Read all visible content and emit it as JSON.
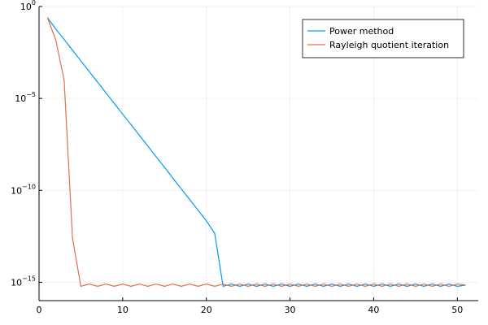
{
  "chart_data": {
    "type": "line",
    "title": "",
    "xlabel": "",
    "ylabel": "",
    "xlim": [
      0,
      52.5
    ],
    "yscale": "log",
    "ylim": [
      1e-16,
      1
    ],
    "grid": true,
    "legend_position": "top-right",
    "x_ticks": [
      0,
      10,
      20,
      30,
      40,
      50
    ],
    "x_tick_labels": [
      "0",
      "10",
      "20",
      "30",
      "40",
      "50"
    ],
    "y_ticks": [
      {
        "value": 1,
        "base": "10",
        "exponent": "0"
      },
      {
        "value": 1e-05,
        "base": "10",
        "exponent": "−5"
      },
      {
        "value": 1e-10,
        "base": "10",
        "exponent": "−10"
      },
      {
        "value": 1e-15,
        "base": "10",
        "exponent": "−15"
      }
    ],
    "series": [
      {
        "name": "Power method",
        "color": "#009af9",
        "x": [
          1,
          2,
          3,
          4,
          5,
          6,
          7,
          8,
          9,
          10,
          11,
          12,
          13,
          14,
          15,
          16,
          17,
          18,
          19,
          20,
          21,
          22,
          23,
          24,
          25,
          26,
          27,
          28,
          29,
          30,
          31,
          32,
          33,
          34,
          35,
          36,
          37,
          38,
          39,
          40,
          41,
          42,
          43,
          44,
          45,
          46,
          47,
          48,
          49,
          50,
          51
        ],
        "y": [
          0.25,
          0.06,
          0.016,
          0.0042,
          0.0011,
          0.00029,
          7.6e-05,
          2e-05,
          5.3e-06,
          1.4e-06,
          3.7e-07,
          9.7e-08,
          2.6e-08,
          6.7e-09,
          1.8e-09,
          4.6e-10,
          1.2e-10,
          3.2e-11,
          8.4e-12,
          2.2e-12,
          4.5e-13,
          6e-16,
          8e-16,
          6e-16,
          8e-16,
          6e-16,
          8e-16,
          6e-16,
          8e-16,
          6e-16,
          8e-16,
          6e-16,
          8e-16,
          6e-16,
          8e-16,
          6e-16,
          8e-16,
          6e-16,
          8e-16,
          6e-16,
          8e-16,
          6e-16,
          8e-16,
          6e-16,
          8e-16,
          6e-16,
          8e-16,
          6e-16,
          8e-16,
          6e-16,
          7e-16
        ]
      },
      {
        "name": "Rayleigh quotient iteration",
        "color": "#e26f46",
        "x": [
          1,
          2,
          3,
          4,
          5,
          6,
          7,
          8,
          9,
          10,
          11,
          12,
          13,
          14,
          15,
          16,
          17,
          18,
          19,
          20,
          21,
          22,
          23,
          24,
          25,
          26,
          27,
          28,
          29,
          30,
          31,
          32,
          33,
          34,
          35,
          36,
          37,
          38,
          39,
          40,
          41,
          42,
          43,
          44,
          45,
          46,
          47,
          48,
          49,
          50,
          51
        ],
        "y": [
          0.25,
          0.015,
          0.0001,
          2.5e-13,
          6e-16,
          8e-16,
          6e-16,
          8e-16,
          6e-16,
          8e-16,
          6e-16,
          8e-16,
          6e-16,
          8e-16,
          6e-16,
          8e-16,
          6e-16,
          8e-16,
          6e-16,
          8e-16,
          6e-16,
          8e-16,
          6e-16,
          8e-16,
          6e-16,
          8e-16,
          6e-16,
          8e-16,
          6e-16,
          8e-16,
          6e-16,
          8e-16,
          6e-16,
          8e-16,
          6e-16,
          8e-16,
          6e-16,
          8e-16,
          6e-16,
          8e-16,
          6e-16,
          8e-16,
          6e-16,
          8e-16,
          6e-16,
          8e-16,
          6e-16,
          8e-16,
          6e-16,
          8e-16,
          7e-16
        ]
      }
    ]
  }
}
